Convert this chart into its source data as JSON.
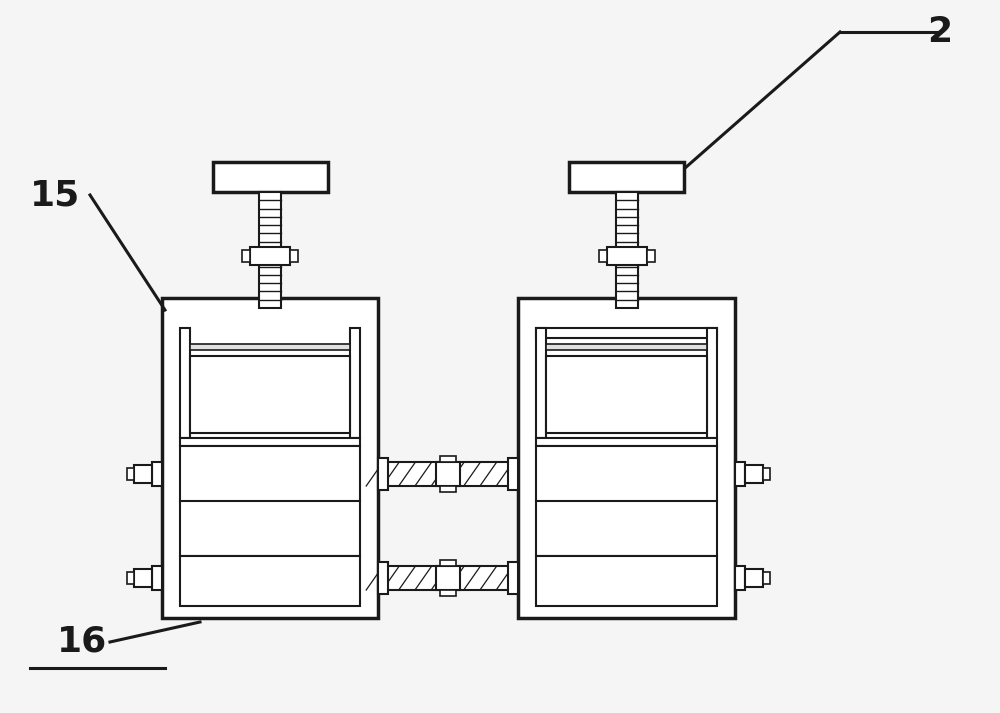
{
  "bg_color": "#f5f5f5",
  "line_color": "#1a1a1a",
  "fill_color": "#ffffff",
  "shade_color": "#e0e0e0",
  "label_color": "#000000",
  "label_fontsize": 26,
  "label_fontweight": "bold",
  "fig_width": 10.0,
  "fig_height": 7.13,
  "dpi": 100,
  "lw_outer": 2.5,
  "lw_inner": 1.8,
  "lw_thin": 1.2,
  "lw_leader": 2.2
}
